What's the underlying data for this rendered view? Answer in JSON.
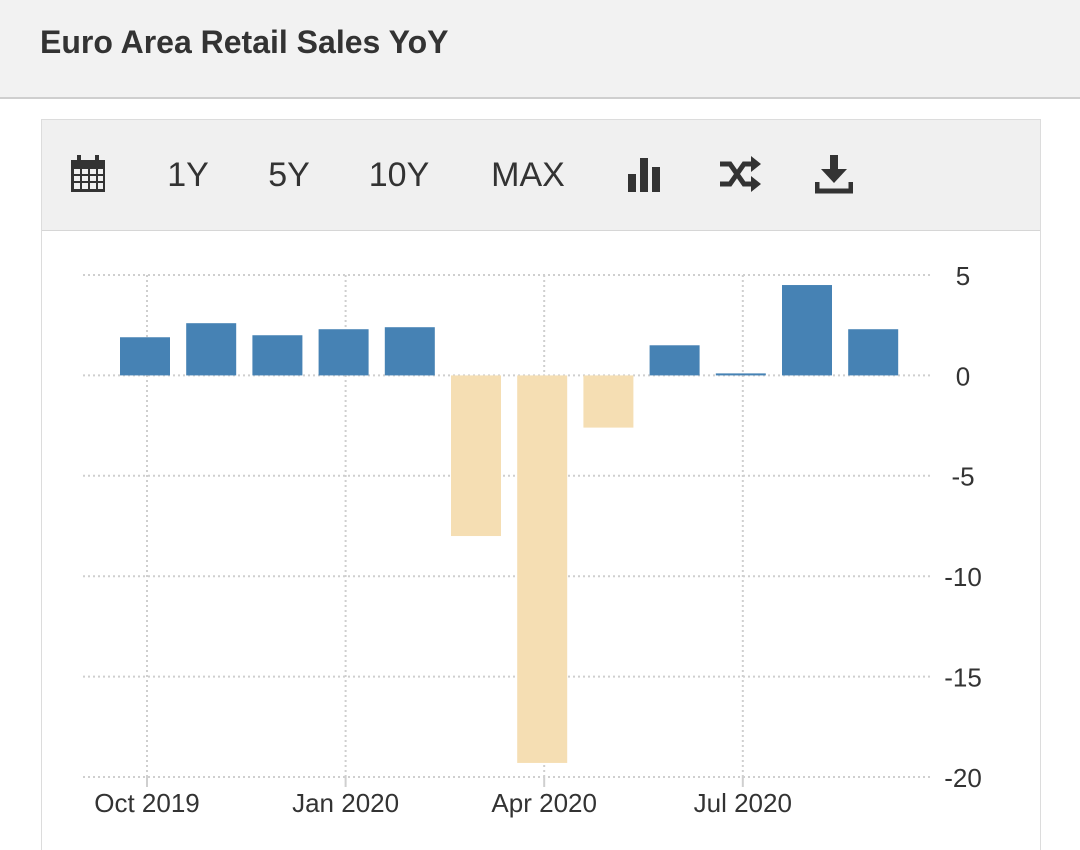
{
  "header": {
    "title": "Euro Area Retail Sales YoY"
  },
  "toolbar": {
    "buttons": [
      "1Y",
      "5Y",
      "10Y",
      "MAX"
    ]
  },
  "chart_data": {
    "type": "bar",
    "categories": [
      "Oct 2019",
      null,
      null,
      "Jan 2020",
      null,
      null,
      "Apr 2020",
      null,
      null,
      "Jul 2020",
      null,
      null
    ],
    "values": [
      1.9,
      2.6,
      2.0,
      2.3,
      2.4,
      -8.0,
      -19.3,
      -2.6,
      1.5,
      0.1,
      4.5,
      2.3
    ],
    "color": "#4682b4",
    "negative_color": "#f5deb3",
    "ylim": [
      -20,
      5
    ],
    "yticks": [
      5,
      0,
      -5,
      -10,
      -15,
      -20
    ],
    "grid": true,
    "y_axis_side": "right"
  }
}
